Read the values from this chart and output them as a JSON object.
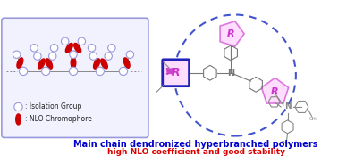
{
  "bg_color": "#ffffff",
  "left_box_color": "#9999dd",
  "circle_edge_color": "#9999dd",
  "chromophore_color": "#cc0000",
  "arrow_color": "#cc44cc",
  "dashed_circle_color": "#4455cc",
  "molecule_color": "#888888",
  "r_shape_color": "#dd77dd",
  "r_text_color": "#cc33cc",
  "title_color": "#0000cc",
  "subtitle_color": "#dd0000",
  "title_text": "Main chain dendronized hyperbranched polymers",
  "subtitle_text": "high NLO coefficient and good stability",
  "legend_circle_text": ": Isolation Group",
  "legend_chrom_text": ": NLO Chromophore",
  "figsize": [
    3.78,
    1.84
  ],
  "dpi": 100
}
